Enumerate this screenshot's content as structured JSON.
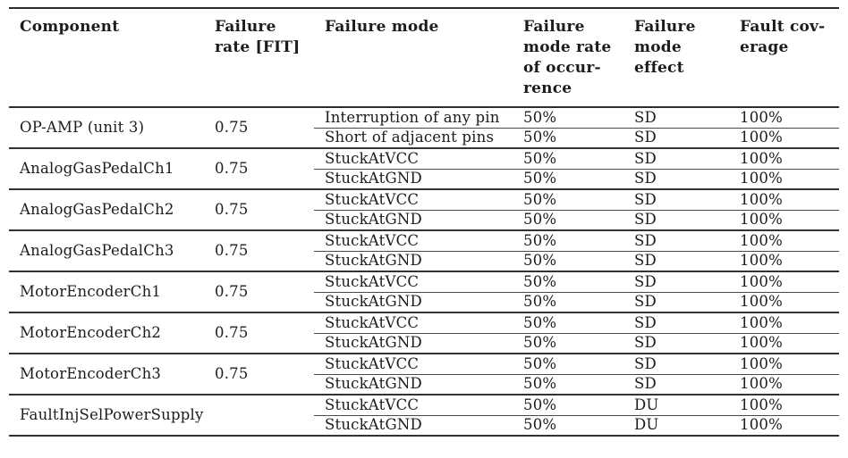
{
  "page": {
    "background": "#ffffff",
    "text_color": "#1c1c1c",
    "rule_color": "#2b2b2b"
  },
  "table": {
    "columns": [
      {
        "id": "component",
        "label": "Component"
      },
      {
        "id": "failure-rate",
        "label": "Failure\nrate [FIT]"
      },
      {
        "id": "failure-mode",
        "label": "Failure mode"
      },
      {
        "id": "mode-rate",
        "label": "Failure\nmode rate\nof  occur-\nrence"
      },
      {
        "id": "mode-effect",
        "label": "Failure\nmode\neffect"
      },
      {
        "id": "fault-coverage",
        "label": "Fault cov-\nerage"
      }
    ],
    "groups": [
      {
        "component": "OP-AMP (unit 3)",
        "failure_rate": "0.75",
        "modes": [
          {
            "mode": "Interruption of any pin",
            "rate": "50%",
            "effect": "SD",
            "coverage": "100%"
          },
          {
            "mode": "Short of adjacent pins",
            "rate": "50%",
            "effect": "SD",
            "coverage": "100%"
          }
        ]
      },
      {
        "component": "AnalogGasPedalCh1",
        "failure_rate": "0.75",
        "modes": [
          {
            "mode": "StuckAtVCC",
            "rate": "50%",
            "effect": "SD",
            "coverage": "100%"
          },
          {
            "mode": "StuckAtGND",
            "rate": "50%",
            "effect": "SD",
            "coverage": "100%"
          }
        ]
      },
      {
        "component": "AnalogGasPedalCh2",
        "failure_rate": "0.75",
        "modes": [
          {
            "mode": "StuckAtVCC",
            "rate": "50%",
            "effect": "SD",
            "coverage": "100%"
          },
          {
            "mode": "StuckAtGND",
            "rate": "50%",
            "effect": "SD",
            "coverage": "100%"
          }
        ]
      },
      {
        "component": "AnalogGasPedalCh3",
        "failure_rate": "0.75",
        "modes": [
          {
            "mode": "StuckAtVCC",
            "rate": "50%",
            "effect": "SD",
            "coverage": "100%"
          },
          {
            "mode": "StuckAtGND",
            "rate": "50%",
            "effect": "SD",
            "coverage": "100%"
          }
        ]
      },
      {
        "component": "MotorEncoderCh1",
        "failure_rate": "0.75",
        "modes": [
          {
            "mode": "StuckAtVCC",
            "rate": "50%",
            "effect": "SD",
            "coverage": "100%"
          },
          {
            "mode": "StuckAtGND",
            "rate": "50%",
            "effect": "SD",
            "coverage": "100%"
          }
        ]
      },
      {
        "component": "MotorEncoderCh2",
        "failure_rate": "0.75",
        "modes": [
          {
            "mode": "StuckAtVCC",
            "rate": "50%",
            "effect": "SD",
            "coverage": "100%"
          },
          {
            "mode": "StuckAtGND",
            "rate": "50%",
            "effect": "SD",
            "coverage": "100%"
          }
        ]
      },
      {
        "component": "MotorEncoderCh3",
        "failure_rate": "0.75",
        "modes": [
          {
            "mode": "StuckAtVCC",
            "rate": "50%",
            "effect": "SD",
            "coverage": "100%"
          },
          {
            "mode": "StuckAtGND",
            "rate": "50%",
            "effect": "SD",
            "coverage": "100%"
          }
        ]
      },
      {
        "component": "FaultInjSelPowerSupply",
        "failure_rate": "",
        "modes": [
          {
            "mode": "StuckAtVCC",
            "rate": "50%",
            "effect": "DU",
            "coverage": "100%"
          },
          {
            "mode": "StuckAtGND",
            "rate": "50%",
            "effect": "DU",
            "coverage": "100%"
          }
        ]
      }
    ]
  }
}
